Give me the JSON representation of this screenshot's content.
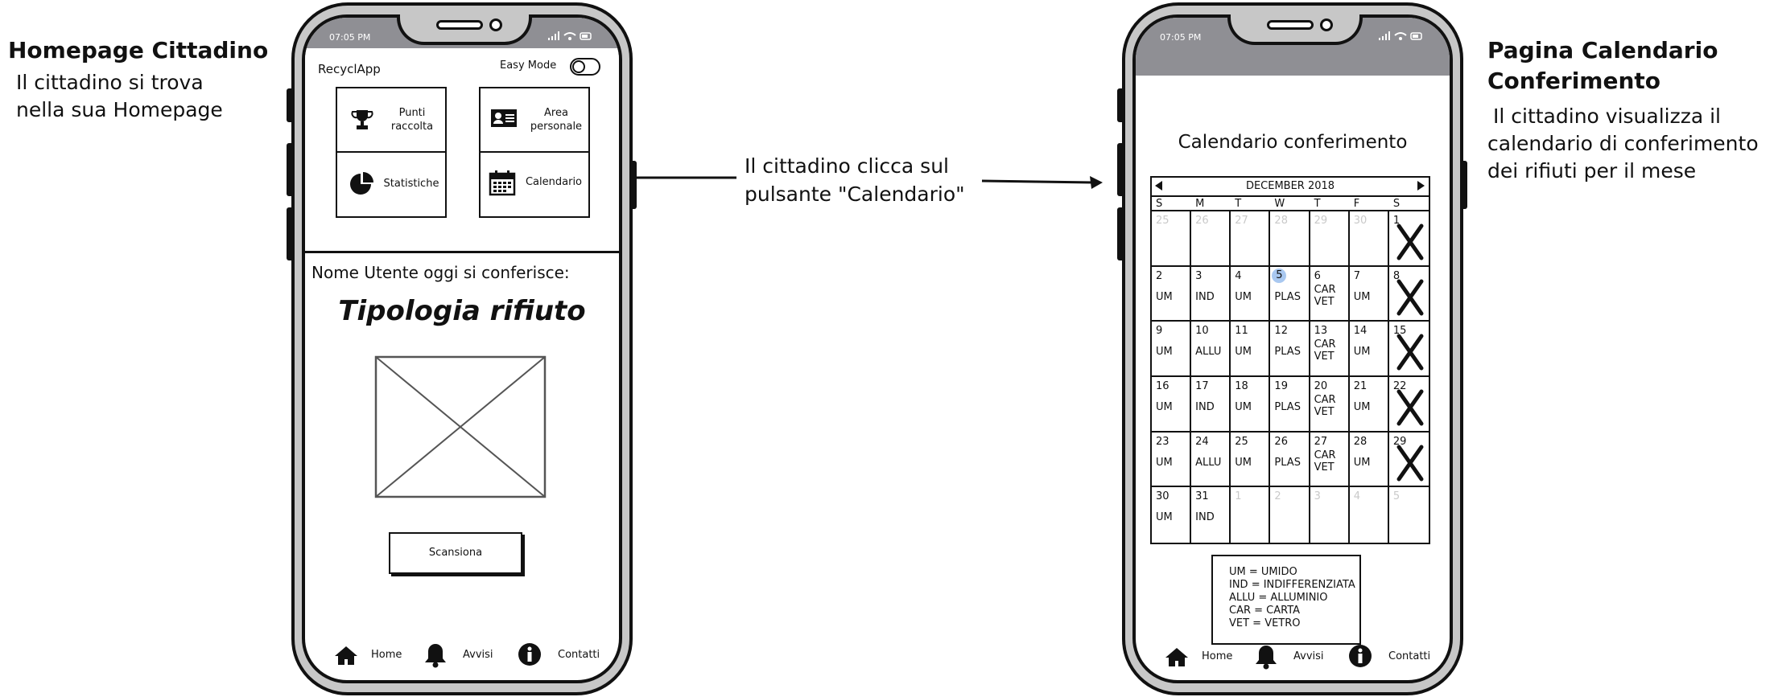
{
  "annotations": {
    "left_title": "Homepage Cittadino",
    "left_line1": "Il cittadino si trova",
    "left_line2": "nella sua Homepage",
    "middle_line1": "Il cittadino clicca sul",
    "middle_line2": "pulsante \"Calendario\"",
    "right_title1": "Pagina Calendario",
    "right_title2": "Conferimento",
    "right_line1": "Il cittadino visualizza il",
    "right_line2": "calendario di conferimento",
    "right_line3": "dei rifiuti per il mese"
  },
  "status": {
    "time": "07:05 PM"
  },
  "home": {
    "app_name": "RecyclApp",
    "easy_mode_label": "Easy Mode",
    "easy_mode_on": false,
    "tiles": [
      {
        "line1": "Punti",
        "line2": "raccolta",
        "icon": "trophy-icon"
      },
      {
        "line1": "Area",
        "line2": "personale",
        "icon": "id-card-icon"
      },
      {
        "line1": "Statistiche",
        "line2": "",
        "icon": "pie-chart-icon"
      },
      {
        "line1": "Calendario",
        "line2": "",
        "icon": "calendar-icon"
      }
    ],
    "today_text": "Nome Utente oggi si conferisce:",
    "waste_type": "Tipologia rifiuto",
    "scan_button": "Scansiona"
  },
  "nav": {
    "home": "Home",
    "alerts": "Avvisi",
    "contacts": "Contatti"
  },
  "calendar": {
    "page_title": "Calendario conferimento",
    "month": "DECEMBER 2018",
    "weekdays": [
      "S",
      "M",
      "T",
      "W",
      "T",
      "F",
      "S"
    ],
    "selected_day": "5",
    "weeks": [
      [
        {
          "d": "25",
          "m": true,
          "c": []
        },
        {
          "d": "26",
          "m": true,
          "c": []
        },
        {
          "d": "27",
          "m": true,
          "c": []
        },
        {
          "d": "28",
          "m": true,
          "c": []
        },
        {
          "d": "29",
          "m": true,
          "c": []
        },
        {
          "d": "30",
          "m": true,
          "c": []
        },
        {
          "d": "1",
          "m": false,
          "c": [],
          "x": true
        }
      ],
      [
        {
          "d": "2",
          "c": [
            "UM"
          ]
        },
        {
          "d": "3",
          "c": [
            "IND"
          ]
        },
        {
          "d": "4",
          "c": [
            "UM"
          ]
        },
        {
          "d": "5",
          "c": [
            "PLAS"
          ]
        },
        {
          "d": "6",
          "c": [
            "CAR",
            "VET"
          ]
        },
        {
          "d": "7",
          "c": [
            "UM"
          ]
        },
        {
          "d": "8",
          "c": [],
          "x": true
        }
      ],
      [
        {
          "d": "9",
          "c": [
            "UM"
          ]
        },
        {
          "d": "10",
          "c": [
            "ALLU"
          ]
        },
        {
          "d": "11",
          "c": [
            "UM"
          ]
        },
        {
          "d": "12",
          "c": [
            "PLAS"
          ]
        },
        {
          "d": "13",
          "c": [
            "CAR",
            "VET"
          ]
        },
        {
          "d": "14",
          "c": [
            "UM"
          ]
        },
        {
          "d": "15",
          "c": [],
          "x": true
        }
      ],
      [
        {
          "d": "16",
          "c": [
            "UM"
          ]
        },
        {
          "d": "17",
          "c": [
            "IND"
          ]
        },
        {
          "d": "18",
          "c": [
            "UM"
          ]
        },
        {
          "d": "19",
          "c": [
            "PLAS"
          ]
        },
        {
          "d": "20",
          "c": [
            "CAR",
            "VET"
          ]
        },
        {
          "d": "21",
          "c": [
            "UM"
          ]
        },
        {
          "d": "22",
          "c": [],
          "x": true
        }
      ],
      [
        {
          "d": "23",
          "c": [
            "UM"
          ]
        },
        {
          "d": "24",
          "c": [
            "ALLU"
          ]
        },
        {
          "d": "25",
          "c": [
            "UM"
          ]
        },
        {
          "d": "26",
          "c": [
            "PLAS"
          ]
        },
        {
          "d": "27",
          "c": [
            "CAR",
            "VET"
          ]
        },
        {
          "d": "28",
          "c": [
            "UM"
          ]
        },
        {
          "d": "29",
          "c": [],
          "x": true
        }
      ],
      [
        {
          "d": "30",
          "c": [
            "UM"
          ]
        },
        {
          "d": "31",
          "c": [
            "IND"
          ]
        },
        {
          "d": "1",
          "m": true,
          "c": []
        },
        {
          "d": "2",
          "m": true,
          "c": []
        },
        {
          "d": "3",
          "m": true,
          "c": []
        },
        {
          "d": "4",
          "m": true,
          "c": []
        },
        {
          "d": "5",
          "m": true,
          "c": []
        }
      ]
    ],
    "legend": [
      "UM = UMIDO",
      "IND = INDIFFERENZIATA",
      "ALLU = ALLUMINIO",
      "CAR = CARTA",
      "VET = VETRO"
    ]
  },
  "colors": {
    "frame_gray": "#c7c7c7",
    "status_bar_gray": "#8f8f94",
    "selected_day": "#a9c8f0"
  }
}
